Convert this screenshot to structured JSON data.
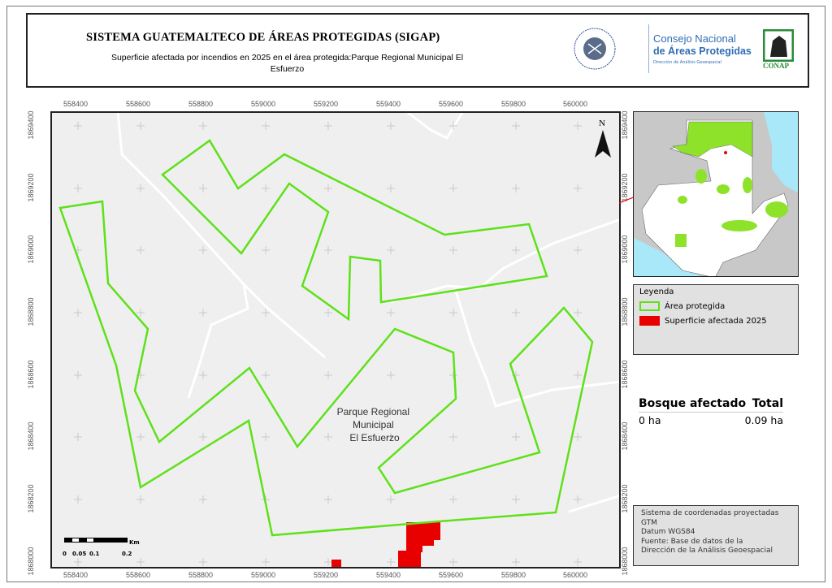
{
  "header": {
    "title": "SISTEMA GUATEMALTECO DE ÁREAS PROTEGIDAS  (SIGAP)",
    "subtitle": "Superficie afectada por incendios en 2025 en el área protegida:Parque Regional Municipal El Esfuerzo",
    "logo_seal_text": "GOBIERNO DE LA REPÚBLICA GUATEMALA",
    "org_line1": "Consejo Nacional",
    "org_line2": "de Áreas Protegidas",
    "org_line3": "Dirección de Análisis Geoespacial",
    "conap_logo_text": "CONAP"
  },
  "map": {
    "x_ticks": [
      "558400",
      "558600",
      "558800",
      "559000",
      "559200",
      "559400",
      "559600",
      "559800",
      "560000"
    ],
    "y_ticks": [
      "1869400",
      "1869200",
      "1869000",
      "1868800",
      "1868600",
      "1868400",
      "1868200",
      "1868000"
    ],
    "north_label": "N",
    "area_label": [
      "Parque Regional",
      "Municipal",
      "El Esfuerzo"
    ],
    "scale_bar": {
      "unit": "Km",
      "labels": [
        "0",
        "0.05",
        "0.1",
        "0.2"
      ]
    },
    "colors": {
      "protected_area": "#5ee11a",
      "affected": "#e80000",
      "background": "#efefef",
      "roads": "#ffffff"
    }
  },
  "legend": {
    "title": "Leyenda",
    "items": [
      {
        "label": "Área protegida",
        "color": "#5ee11a",
        "style": "outline"
      },
      {
        "label": "Superficie afectada 2025",
        "color": "#e80000",
        "style": "fill"
      }
    ]
  },
  "stats": {
    "header_left": "Bosque afectado",
    "header_right": "Total",
    "value_left": "0 ha",
    "value_right": "0.09 ha"
  },
  "note": {
    "lines": [
      "Sistema de coordenadas proyectadas",
      "GTM",
      "Datum WGS84",
      "Fuente: Base de datos de la",
      "Dirección de la Análisis Geoespacial"
    ]
  }
}
